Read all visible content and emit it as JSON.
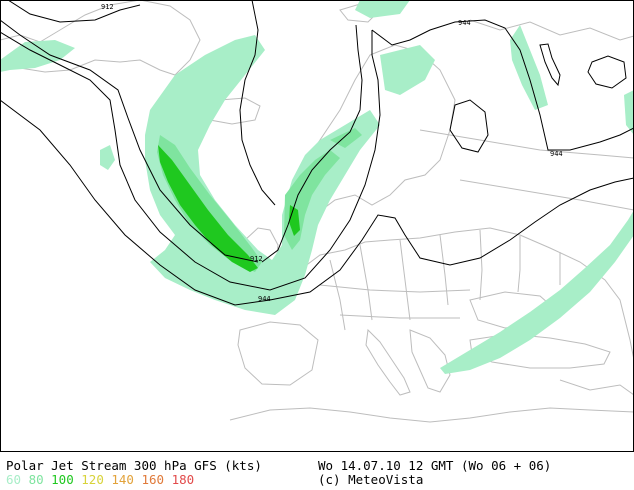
{
  "map": {
    "contour_labels": [
      "912",
      "944",
      "944",
      "912",
      "944",
      "944"
    ],
    "colors": {
      "land_fill": "#ffffff",
      "border_line": "#bdbdbd",
      "contour_line": "#000000",
      "jet_60": "#a8eec8",
      "jet_80": "#7fe49f",
      "jet_100": "#1fc81f"
    }
  },
  "footer": {
    "title": "Polar Jet Stream 300 hPa GFS (kts)",
    "timestamp": "Wo 14.07.10 12 GMT (Wo 06 + 06)",
    "copyright": "(c) MeteoVista",
    "legend": [
      {
        "label": "60",
        "color": "#a8eec8"
      },
      {
        "label": "80",
        "color": "#7fe49f"
      },
      {
        "label": "100",
        "color": "#1fc81f"
      },
      {
        "label": "120",
        "color": "#d8d33a"
      },
      {
        "label": "140",
        "color": "#e2a23a"
      },
      {
        "label": "160",
        "color": "#e07a3a"
      },
      {
        "label": "180",
        "color": "#e24b4b"
      }
    ]
  }
}
